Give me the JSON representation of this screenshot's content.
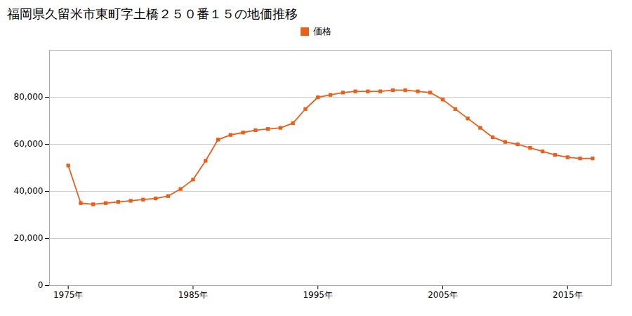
{
  "chart_data": {
    "type": "line",
    "title": "福岡県久留米市東町字土橋２５０番１５の地価推移",
    "x": [
      1975,
      1976,
      1977,
      1978,
      1979,
      1980,
      1981,
      1982,
      1983,
      1984,
      1985,
      1986,
      1987,
      1988,
      1989,
      1990,
      1991,
      1992,
      1993,
      1994,
      1995,
      1996,
      1997,
      1998,
      1999,
      2000,
      2001,
      2002,
      2003,
      2004,
      2005,
      2006,
      2007,
      2008,
      2009,
      2010,
      2011,
      2012,
      2013,
      2014,
      2015,
      2016,
      2017
    ],
    "series": [
      {
        "name": "価格",
        "color": "#e8601c",
        "marker": "square",
        "values": [
          51000,
          35000,
          34500,
          35000,
          35500,
          36000,
          36500,
          37000,
          38000,
          41000,
          45000,
          53000,
          62000,
          64000,
          65000,
          66000,
          66500,
          67000,
          69000,
          75000,
          80000,
          81000,
          82000,
          82500,
          82500,
          82500,
          83000,
          83000,
          82500,
          82000,
          79000,
          75000,
          71000,
          67000,
          63000,
          61000,
          60000,
          58500,
          57000,
          55500,
          54500,
          54000,
          54000
        ]
      }
    ],
    "xlim": [
      1973.5,
      2018.5
    ],
    "xticks": [
      {
        "value": 1975,
        "label": "1975年"
      },
      {
        "value": 1985,
        "label": "1985年"
      },
      {
        "value": 1995,
        "label": "1995年"
      },
      {
        "value": 2005,
        "label": "2005年"
      },
      {
        "value": 2015,
        "label": "2015年"
      }
    ],
    "ylim": [
      0,
      100000
    ],
    "yticks": [
      0,
      {
        "value": 20000,
        "label": "20,000"
      },
      {
        "value": 40000,
        "label": "40,000"
      },
      {
        "value": 60000,
        "label": "60,000"
      },
      {
        "value": 80000,
        "label": "80,000"
      }
    ],
    "grid": "y",
    "legend": "top"
  }
}
